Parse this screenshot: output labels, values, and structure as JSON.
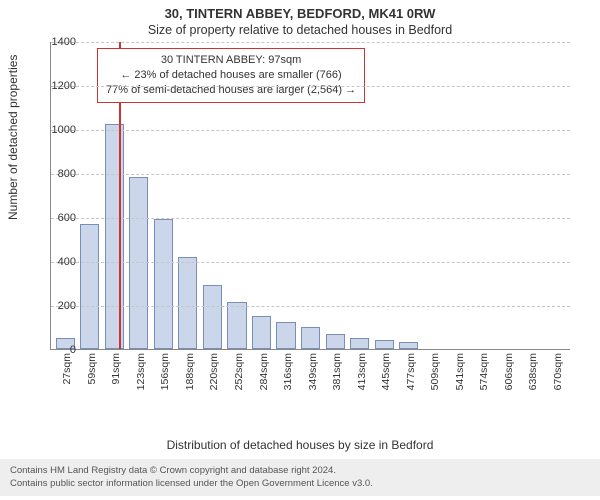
{
  "title": "30, TINTERN ABBEY, BEDFORD, MK41 0RW",
  "subtitle": "Size of property relative to detached houses in Bedford",
  "ylabel": "Number of detached properties",
  "xlabel": "Distribution of detached houses by size in Bedford",
  "chart": {
    "type": "histogram",
    "bar_fill": "#ccd6ea",
    "bar_border": "#7a8fb8",
    "grid_color": "#c6c6c6",
    "axis_color": "#888888",
    "background": "#ffffff",
    "ylim": [
      0,
      1400
    ],
    "ytick_step": 200,
    "yticks": [
      0,
      200,
      400,
      600,
      800,
      1000,
      1200,
      1400
    ],
    "categories": [
      "27sqm",
      "59sqm",
      "91sqm",
      "123sqm",
      "156sqm",
      "188sqm",
      "220sqm",
      "252sqm",
      "284sqm",
      "316sqm",
      "349sqm",
      "381sqm",
      "413sqm",
      "445sqm",
      "477sqm",
      "509sqm",
      "541sqm",
      "574sqm",
      "606sqm",
      "638sqm",
      "670sqm"
    ],
    "values": [
      50,
      570,
      1025,
      780,
      590,
      420,
      290,
      215,
      150,
      125,
      100,
      70,
      50,
      40,
      30,
      0,
      0,
      0,
      0,
      0,
      0
    ],
    "marker_position_index": 2.25,
    "marker_color": "#cc3333"
  },
  "info_box": {
    "border_color": "#cc3333",
    "line1": "30 TINTERN ABBEY: 97sqm",
    "line2": "← 23% of detached houses are smaller (766)",
    "line3": "77% of semi-detached houses are larger (2,564) →"
  },
  "footer": {
    "line1": "Contains HM Land Registry data © Crown copyright and database right 2024.",
    "line2": "Contains public sector information licensed under the Open Government Licence v3.0."
  }
}
